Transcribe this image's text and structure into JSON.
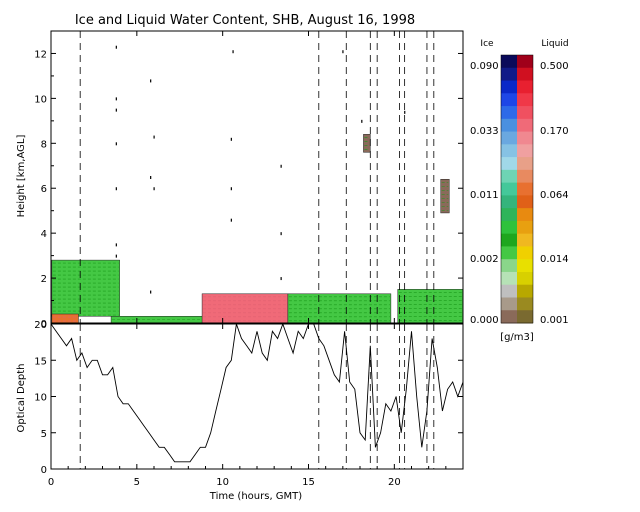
{
  "title": "Ice and Liquid Water Content, SHB, August 16, 1998",
  "legend": {
    "ice_label": "Ice",
    "liquid_label": "Liquid",
    "ice_ticks": [
      "0.090",
      "0.033",
      "0.011",
      "0.002",
      "0.000"
    ],
    "liquid_ticks": [
      "0.500",
      "0.170",
      "0.064",
      "0.014",
      "0.001"
    ],
    "units": "[g/m3]",
    "ice_colors": [
      "#0a0a5a",
      "#101a88",
      "#0a28c8",
      "#1e46e6",
      "#2e6ae8",
      "#4a90e0",
      "#6aa8e0",
      "#86c2e4",
      "#a0d8e8",
      "#6ed4b4",
      "#44c89a",
      "#34b47c",
      "#2eb45a",
      "#2ec23c",
      "#1ea61e",
      "#44c844",
      "#8ad68a",
      "#b6e2b6",
      "#bfbfbf",
      "#a89a8a",
      "#8a6a5a"
    ],
    "liquid_colors": [
      "#a0001a",
      "#d01020",
      "#e82030",
      "#f03848",
      "#f05060",
      "#f06a78",
      "#f08890",
      "#f0a0a0",
      "#e8a088",
      "#e88a60",
      "#e87030",
      "#e06018",
      "#e88a10",
      "#e8a010",
      "#f0b820",
      "#f0d000",
      "#e8e000",
      "#d8d000",
      "#b8a800",
      "#9a8a20",
      "#7a6a30"
    ]
  },
  "chart_data": [
    {
      "type": "heatmap",
      "ylabel": "Height [km,AGL]",
      "xlim": [
        0,
        24
      ],
      "ylim": [
        0,
        13
      ],
      "xticks": [
        0,
        5,
        10,
        15,
        20
      ],
      "yticks": [
        0,
        2,
        4,
        6,
        8,
        10,
        12
      ],
      "grid": false,
      "dashed_lines_x": [
        1.7,
        15.6,
        17.2,
        18.6,
        19.0,
        20.3,
        20.6,
        21.9,
        22.3
      ],
      "regions": [
        {
          "phase": "ice",
          "level": "0.002",
          "x": [
            0.05,
            4.0
          ],
          "y": [
            0.3,
            2.8
          ]
        },
        {
          "phase": "liquid",
          "level": "0.064",
          "x": [
            0.05,
            1.6
          ],
          "y": [
            0.0,
            0.4
          ]
        },
        {
          "phase": "ice",
          "level": "0.002",
          "x": [
            3.5,
            9.0
          ],
          "y": [
            0.0,
            0.3
          ]
        },
        {
          "phase": "liquid",
          "level": "0.170",
          "x": [
            8.8,
            13.8
          ],
          "y": [
            0.0,
            1.3
          ]
        },
        {
          "phase": "ice",
          "level": "0.002",
          "x": [
            13.8,
            19.8
          ],
          "y": [
            0.0,
            1.3
          ]
        },
        {
          "phase": "ice",
          "level": "0.002",
          "x": [
            20.2,
            24.0
          ],
          "y": [
            0.0,
            1.5
          ]
        },
        {
          "phase": "ice",
          "level": "0.000",
          "x": [
            22.7,
            23.2
          ],
          "y": [
            4.9,
            6.4
          ]
        },
        {
          "phase": "ice",
          "level": "0.000",
          "x": [
            18.2,
            18.6
          ],
          "y": [
            7.6,
            8.4
          ]
        }
      ]
    },
    {
      "type": "line",
      "xlabel": "Time (hours, GMT)",
      "ylabel": "Optical Depth",
      "xlim": [
        0,
        24
      ],
      "ylim": [
        0,
        20
      ],
      "xticks": [
        0,
        5,
        10,
        15,
        20
      ],
      "yticks": [
        0,
        5,
        10,
        15,
        20
      ],
      "grid": false,
      "x": [
        0.0,
        0.3,
        0.6,
        0.9,
        1.2,
        1.5,
        1.8,
        2.1,
        2.4,
        2.7,
        3.0,
        3.3,
        3.6,
        3.9,
        4.2,
        4.5,
        4.8,
        5.1,
        5.4,
        5.7,
        6.0,
        6.3,
        6.6,
        6.9,
        7.2,
        7.5,
        7.8,
        8.1,
        8.4,
        8.7,
        9.0,
        9.3,
        9.6,
        9.9,
        10.2,
        10.5,
        10.8,
        11.1,
        11.4,
        11.7,
        12.0,
        12.3,
        12.6,
        12.9,
        13.2,
        13.5,
        13.8,
        14.1,
        14.4,
        14.7,
        15.0,
        15.3,
        15.6,
        15.9,
        16.2,
        16.5,
        16.8,
        17.1,
        17.4,
        17.7,
        18.0,
        18.3,
        18.6,
        18.9,
        19.2,
        19.5,
        19.8,
        20.1,
        20.4,
        20.7,
        21.0,
        21.3,
        21.6,
        21.9,
        22.2,
        22.5,
        22.8,
        23.1,
        23.4,
        23.7,
        24.0
      ],
      "y": [
        20,
        19,
        18,
        17,
        18,
        15,
        16,
        14,
        15,
        15,
        13,
        13,
        14,
        10,
        9,
        9,
        8,
        7,
        6,
        5,
        4,
        3,
        3,
        2,
        1,
        1,
        1,
        1,
        2,
        3,
        3,
        5,
        8,
        11,
        14,
        15,
        20,
        18,
        17,
        16,
        19,
        16,
        15,
        19,
        18,
        20,
        18,
        16,
        19,
        18,
        20,
        20,
        18,
        17,
        15,
        13,
        12,
        19,
        12,
        11,
        5,
        4,
        17,
        3,
        5,
        9,
        8,
        10,
        5,
        11,
        19,
        10,
        3,
        8,
        18,
        14,
        8,
        11,
        12,
        10,
        12
      ]
    }
  ]
}
